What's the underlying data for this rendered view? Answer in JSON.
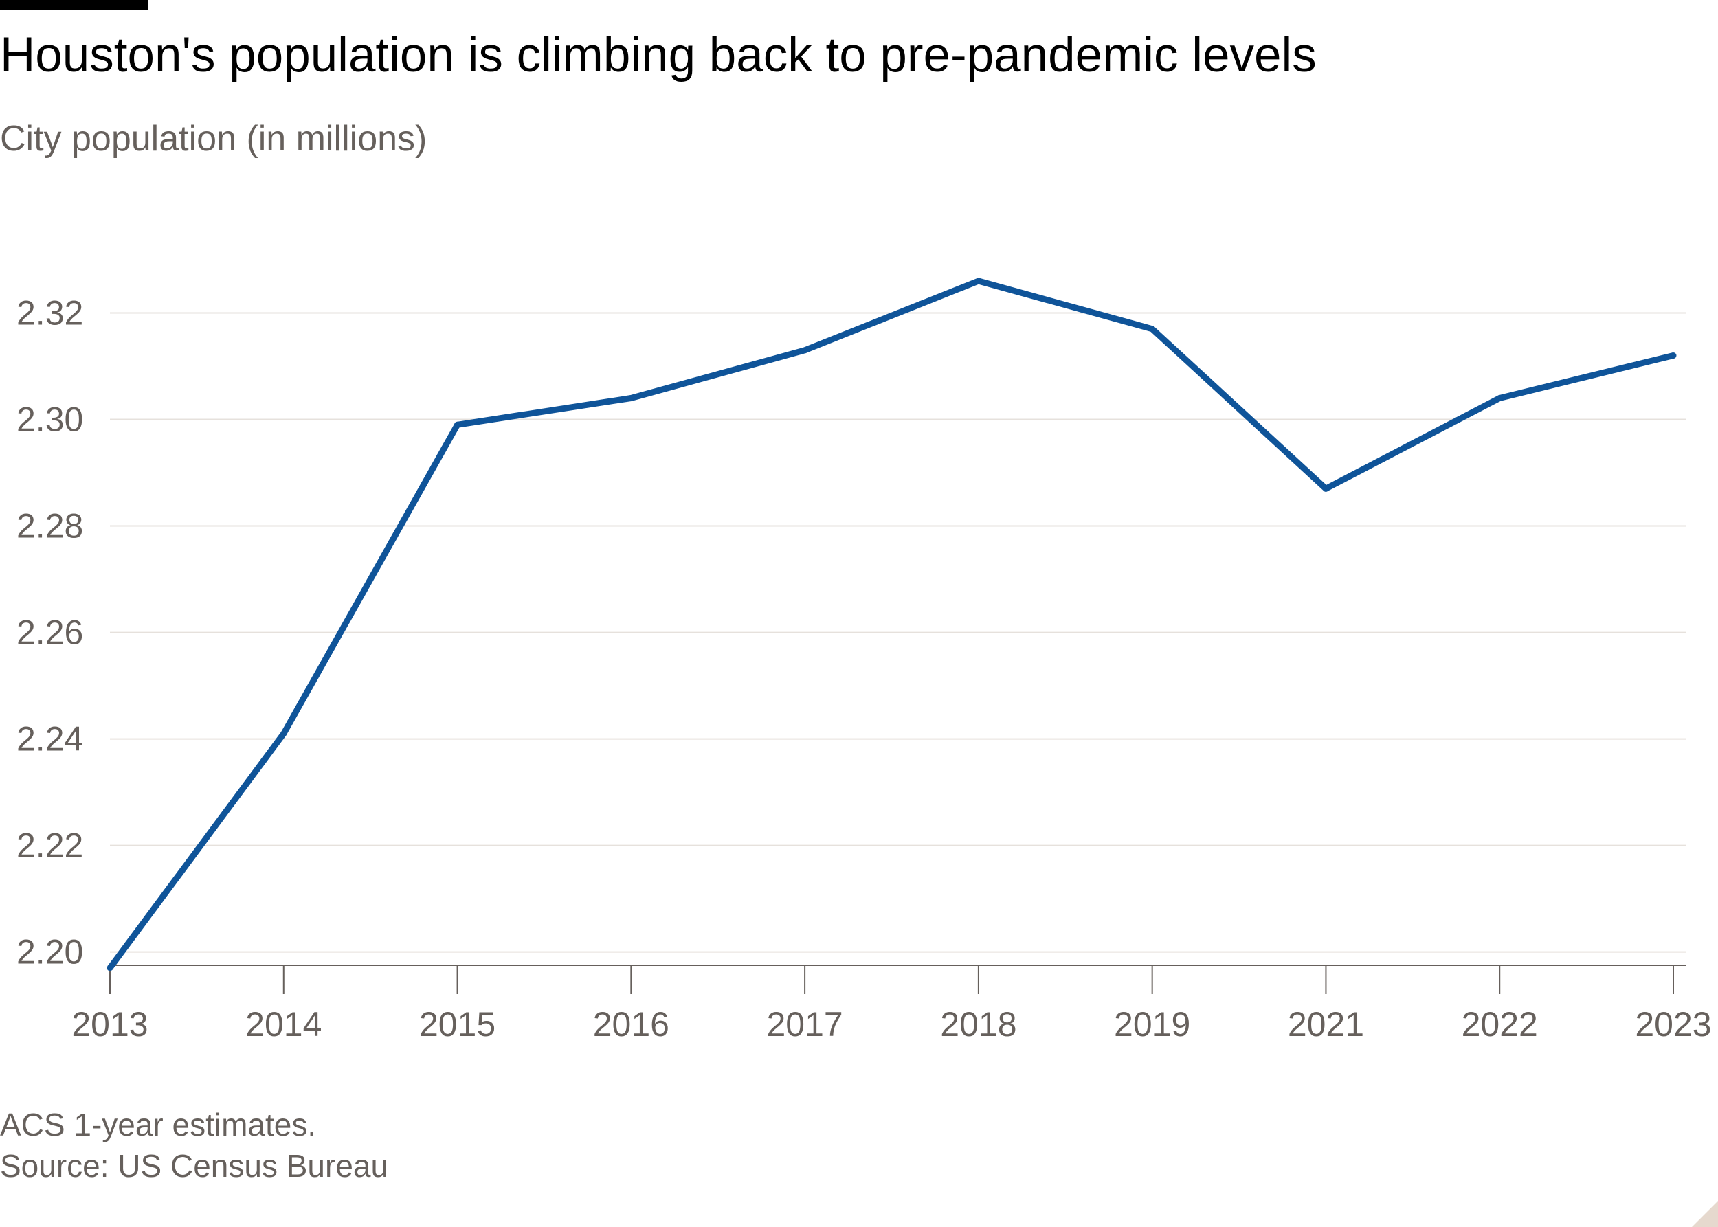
{
  "header": {
    "title": "Houston's population is climbing back to pre-pandemic levels",
    "subtitle": "City population (in millions)"
  },
  "footer": {
    "note": "ACS 1-year estimates.",
    "source": "Source: US Census Bureau"
  },
  "colors": {
    "line": "#0f5499",
    "grid": "#e6e1dc",
    "axis": "#66605c",
    "text": "#66605c",
    "accent_bar": "#000000",
    "corner": "#e6d9ce"
  },
  "chart_data": {
    "type": "line",
    "title": "Houston's population is climbing back to pre-pandemic levels",
    "subtitle": "City population (in millions)",
    "xlabel": "",
    "ylabel": "",
    "categories": [
      "2013",
      "2014",
      "2015",
      "2016",
      "2017",
      "2018",
      "2019",
      "2021",
      "2022",
      "2023"
    ],
    "series": [
      {
        "values": [
          2.197,
          2.241,
          2.299,
          2.304,
          2.313,
          2.326,
          2.317,
          2.287,
          2.304,
          2.312
        ]
      }
    ],
    "yticks": [
      "2.20",
      "2.22",
      "2.24",
      "2.26",
      "2.28",
      "2.30",
      "2.32"
    ],
    "ytick_values": [
      2.2,
      2.22,
      2.24,
      2.26,
      2.28,
      2.3,
      2.32
    ],
    "ylim": [
      2.1975,
      2.33
    ],
    "grid": true,
    "legend": "none"
  }
}
